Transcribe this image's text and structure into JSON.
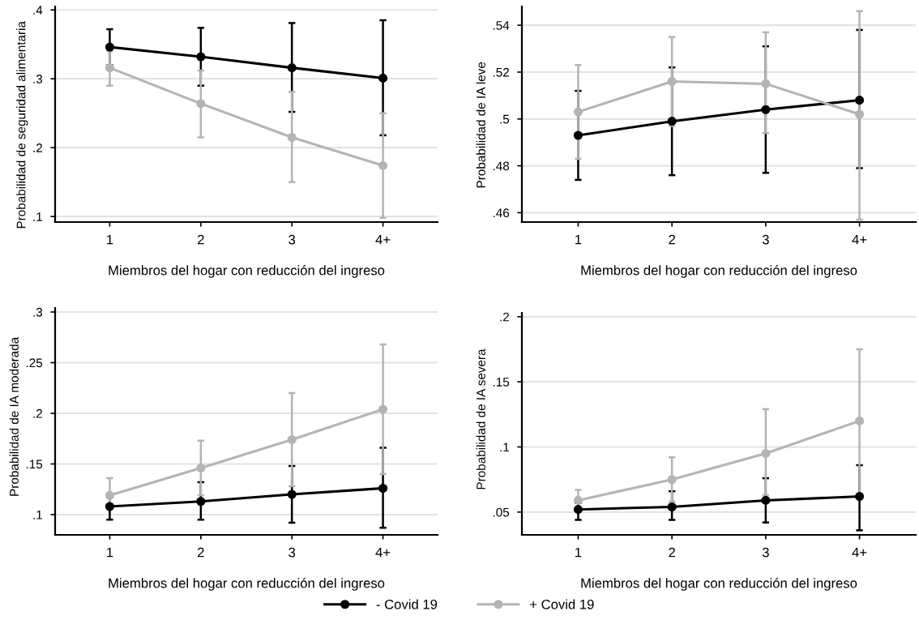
{
  "chart_data": [
    {
      "type": "line",
      "ylabel": "Probabilidad de seguridad alimentaria",
      "xlabel": "Miembros del hogar con reducción del ingreso",
      "categories": [
        "1",
        "2",
        "3",
        "4+"
      ],
      "ylim": [
        0.092,
        0.405
      ],
      "yticks": [
        {
          "value": 0.1,
          "label": ".1"
        },
        {
          "value": 0.2,
          "label": ".2"
        },
        {
          "value": 0.3,
          "label": ".3"
        },
        {
          "value": 0.4,
          "label": ".4"
        }
      ],
      "grid": "y",
      "marker": "circle",
      "legend": "bottom",
      "series": [
        {
          "name": "- Covid 19",
          "color": "#000000",
          "values": [
            0.346,
            0.332,
            0.316,
            0.301
          ],
          "errors": [
            [
              0.32,
              0.372
            ],
            [
              0.29,
              0.374
            ],
            [
              0.252,
              0.381
            ],
            [
              0.218,
              0.385
            ]
          ]
        },
        {
          "name": "+ Covid 19",
          "color": "#b4b4b4",
          "values": [
            0.316,
            0.264,
            0.215,
            0.174
          ],
          "errors": [
            [
              0.29,
              0.34
            ],
            [
              0.215,
              0.312
            ],
            [
              0.15,
              0.281
            ],
            [
              0.098,
              0.25
            ]
          ]
        }
      ]
    },
    {
      "type": "line",
      "ylabel": "Probabilidad de IA leve",
      "xlabel": "Miembros del hogar con reducción del ingreso",
      "categories": [
        "1",
        "2",
        "3",
        "4+"
      ],
      "ylim": [
        0.456,
        0.548
      ],
      "yticks": [
        {
          "value": 0.46,
          "label": ".46"
        },
        {
          "value": 0.48,
          "label": ".48"
        },
        {
          "value": 0.5,
          "label": ".5"
        },
        {
          "value": 0.52,
          "label": ".52"
        },
        {
          "value": 0.54,
          "label": ".54"
        }
      ],
      "grid": "y",
      "marker": "circle",
      "series": [
        {
          "color": "#000000",
          "values": [
            0.493,
            0.499,
            0.504,
            0.508
          ],
          "errors": [
            [
              0.474,
              0.512
            ],
            [
              0.476,
              0.522
            ],
            [
              0.477,
              0.531
            ],
            [
              0.479,
              0.538
            ]
          ]
        },
        {
          "color": "#b4b4b4",
          "values": [
            0.503,
            0.516,
            0.515,
            0.502
          ],
          "errors": [
            [
              0.483,
              0.523
            ],
            [
              0.497,
              0.535
            ],
            [
              0.494,
              0.537
            ],
            [
              0.457,
              0.546
            ]
          ]
        }
      ]
    },
    {
      "type": "line",
      "ylabel": "Probabilidad de IA moderada",
      "xlabel": "Miembros del hogar con reducción del ingreso",
      "categories": [
        "1",
        "2",
        "3",
        "4+"
      ],
      "ylim": [
        0.08,
        0.304
      ],
      "yticks": [
        {
          "value": 0.1,
          "label": ".1"
        },
        {
          "value": 0.15,
          "label": ".15"
        },
        {
          "value": 0.2,
          "label": ".2"
        },
        {
          "value": 0.25,
          "label": ".25"
        },
        {
          "value": 0.3,
          "label": ".3"
        }
      ],
      "grid": "y",
      "marker": "circle",
      "series": [
        {
          "color": "#000000",
          "values": [
            0.108,
            0.113,
            0.12,
            0.126
          ],
          "errors": [
            [
              0.095,
              0.117
            ],
            [
              0.095,
              0.132
            ],
            [
              0.092,
              0.148
            ],
            [
              0.087,
              0.166
            ]
          ]
        },
        {
          "color": "#b4b4b4",
          "values": [
            0.119,
            0.146,
            0.174,
            0.204
          ],
          "errors": [
            [
              0.106,
              0.136
            ],
            [
              0.119,
              0.173
            ],
            [
              0.128,
              0.22
            ],
            [
              0.14,
              0.268
            ]
          ]
        }
      ]
    },
    {
      "type": "line",
      "ylabel": "Probabilidad de IA severa",
      "xlabel": "Miembros del hogar con reducción del ingreso",
      "categories": [
        "1",
        "2",
        "3",
        "4+"
      ],
      "ylim": [
        0.0325,
        0.203
      ],
      "yticks": [
        {
          "value": 0.05,
          "label": ".05"
        },
        {
          "value": 0.1,
          "label": ".1"
        },
        {
          "value": 0.15,
          "label": ".15"
        },
        {
          "value": 0.2,
          "label": ".2"
        }
      ],
      "grid": "y",
      "marker": "circle",
      "series": [
        {
          "color": "#000000",
          "values": [
            0.052,
            0.054,
            0.059,
            0.062
          ],
          "errors": [
            [
              0.044,
              0.057
            ],
            [
              0.044,
              0.066
            ],
            [
              0.042,
              0.076
            ],
            [
              0.036,
              0.086
            ]
          ]
        },
        {
          "color": "#b4b4b4",
          "values": [
            0.059,
            0.075,
            0.095,
            0.12
          ],
          "errors": [
            [
              0.053,
              0.067
            ],
            [
              0.058,
              0.092
            ],
            [
              0.063,
              0.129
            ],
            [
              0.064,
              0.175
            ]
          ]
        }
      ]
    }
  ]
}
